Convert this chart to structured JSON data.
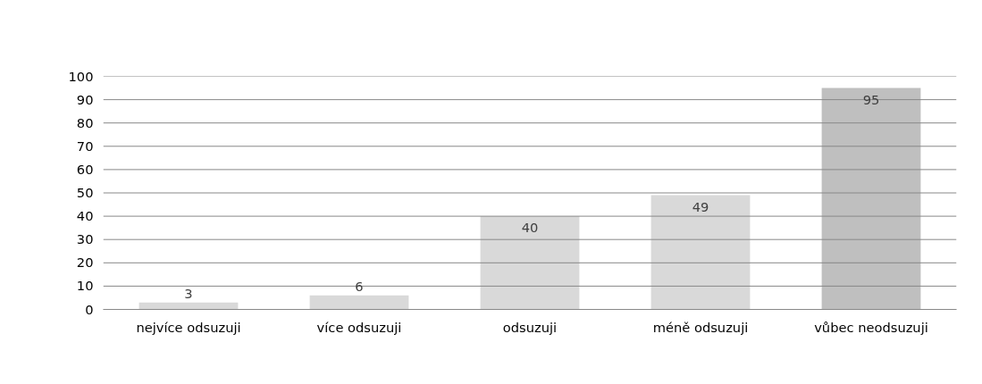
{
  "chart_data": {
    "type": "bar",
    "categories": [
      "nejvíce odsuzuji",
      "více odsuzuji",
      "odsuzuji",
      "méně odsuzuji",
      "vůbec neodsuzuji"
    ],
    "values": [
      3,
      6,
      40,
      49,
      95
    ],
    "colors": [
      "#d9d9d9",
      "#d9d9d9",
      "#d9d9d9",
      "#d9d9d9",
      "#bfbfbf"
    ],
    "ylim": [
      0,
      100
    ],
    "yticks": [
      0,
      10,
      20,
      30,
      40,
      50,
      60,
      70,
      80,
      90,
      100
    ],
    "grid": "y",
    "data_labels": true
  }
}
